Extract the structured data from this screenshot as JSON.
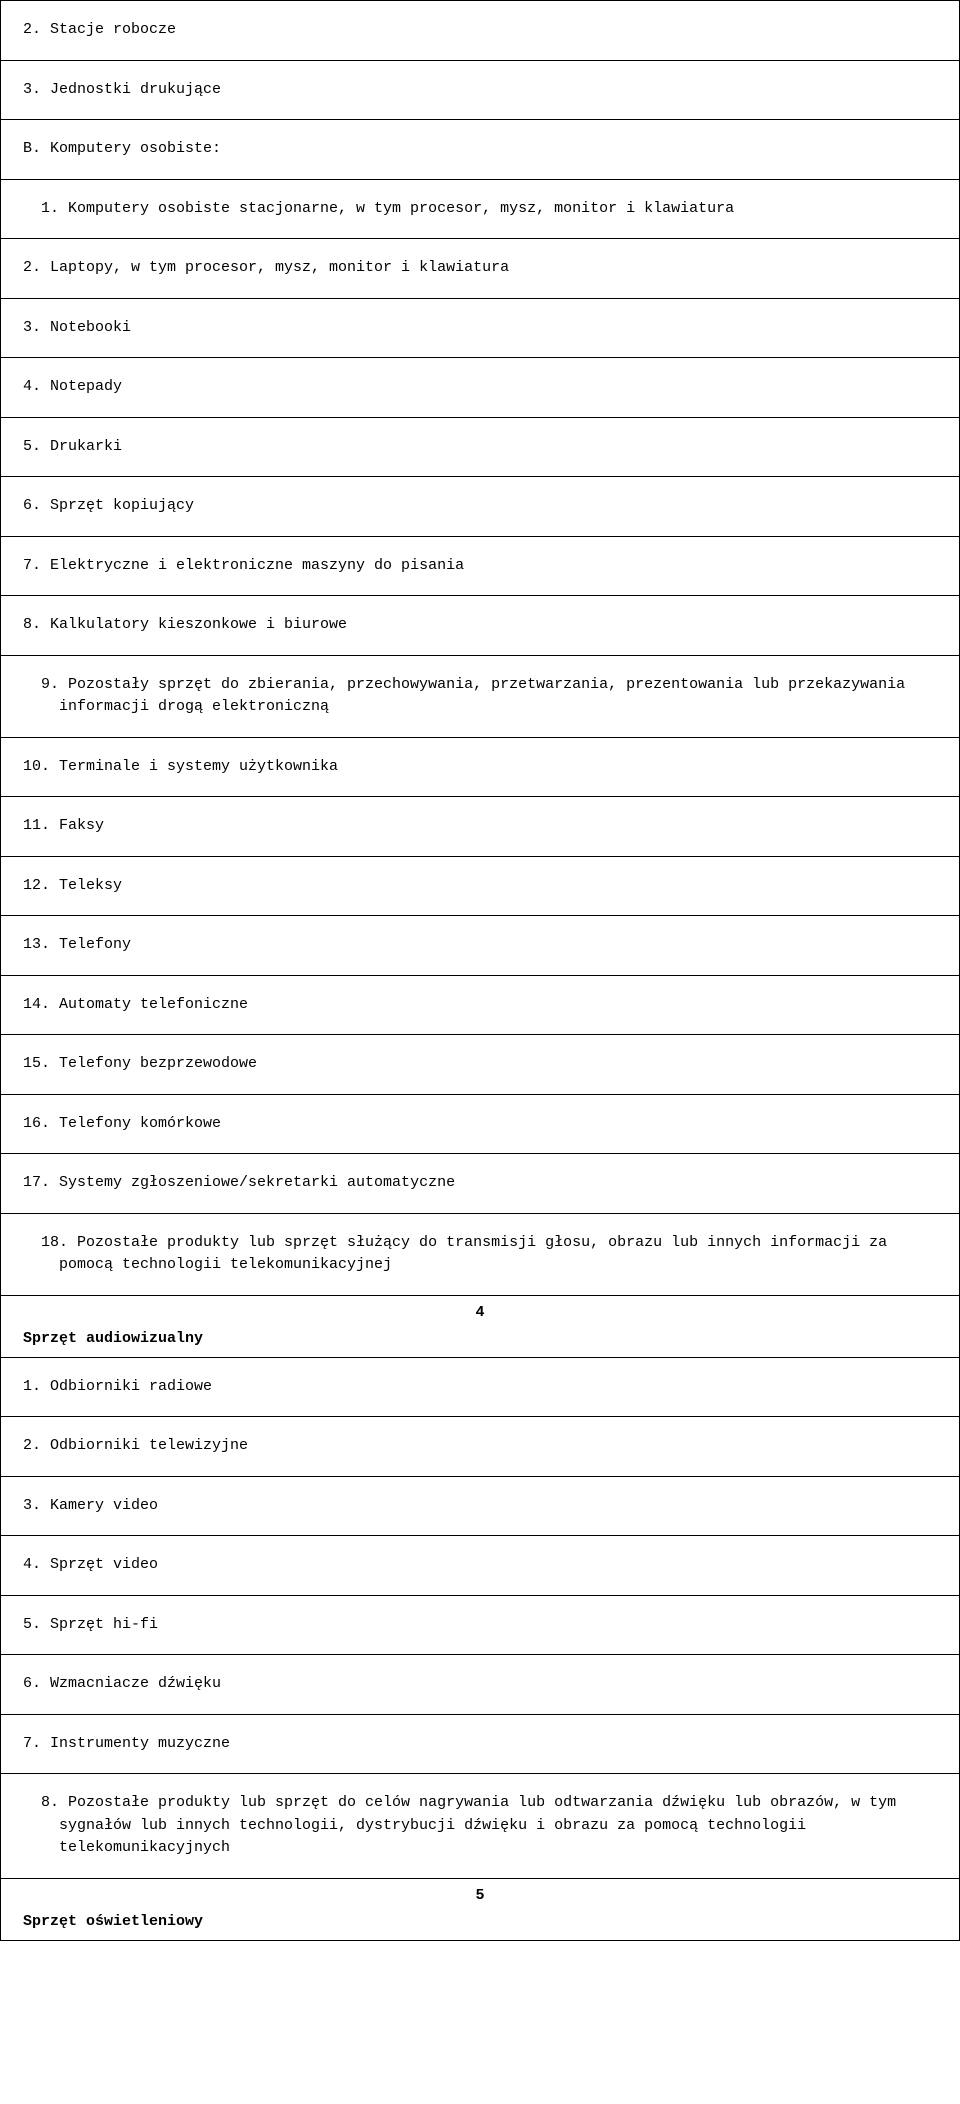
{
  "rows": [
    {
      "type": "item",
      "text": "2. Stacje robocze"
    },
    {
      "type": "item",
      "text": "3. Jednostki drukujące"
    },
    {
      "type": "item",
      "text": "B. Komputery osobiste:"
    },
    {
      "type": "item-indent",
      "text": "1. Komputery osobiste stacjonarne, w tym procesor, mysz, monitor i klawiatura"
    },
    {
      "type": "item",
      "text": "2. Laptopy, w tym procesor, mysz, monitor i klawiatura"
    },
    {
      "type": "item",
      "text": "3. Notebooki"
    },
    {
      "type": "item",
      "text": "4. Notepady"
    },
    {
      "type": "item",
      "text": "5. Drukarki"
    },
    {
      "type": "item",
      "text": "6. Sprzęt kopiujący"
    },
    {
      "type": "item",
      "text": "7. Elektryczne i elektroniczne maszyny do pisania"
    },
    {
      "type": "item",
      "text": "8. Kalkulatory kieszonkowe i biurowe"
    },
    {
      "type": "item-indent",
      "text": "9. Pozostały sprzęt do zbierania, przechowywania, przetwarzania, prezentowania lub przekazywania informacji drogą elektroniczną"
    },
    {
      "type": "item",
      "text": "10. Terminale i systemy użytkownika"
    },
    {
      "type": "item",
      "text": "11. Faksy"
    },
    {
      "type": "item",
      "text": "12. Teleksy"
    },
    {
      "type": "item",
      "text": "13. Telefony"
    },
    {
      "type": "item",
      "text": "14. Automaty telefoniczne"
    },
    {
      "type": "item",
      "text": "15. Telefony bezprzewodowe"
    },
    {
      "type": "item",
      "text": "16. Telefony komórkowe"
    },
    {
      "type": "item",
      "text": "17. Systemy zgłoszeniowe/sekretarki automatyczne"
    },
    {
      "type": "item-indent",
      "text": "18. Pozostałe produkty lub sprzęt służący do transmisji głosu, obrazu lub innych informacji za pomocą technologii telekomunikacyjnej"
    },
    {
      "type": "category",
      "num": "4",
      "title": "Sprzęt audiowizualny"
    },
    {
      "type": "item",
      "text": "1. Odbiorniki radiowe"
    },
    {
      "type": "item",
      "text": "2. Odbiorniki telewizyjne"
    },
    {
      "type": "item",
      "text": "3. Kamery video"
    },
    {
      "type": "item",
      "text": "4. Sprzęt video"
    },
    {
      "type": "item",
      "text": "5. Sprzęt hi-fi"
    },
    {
      "type": "item",
      "text": "6. Wzmacniacze dźwięku"
    },
    {
      "type": "item",
      "text": "7. Instrumenty muzyczne"
    },
    {
      "type": "item-indent",
      "text": "8. Pozostałe produkty lub sprzęt do celów nagrywania lub odtwarzania dźwięku lub obrazów, w tym sygnałów lub innych technologii, dystrybucji dźwięku i obrazu za pomocą technologii telekomunikacyjnych"
    },
    {
      "type": "category",
      "num": "5",
      "title": "Sprzęt oświetleniowy"
    }
  ]
}
